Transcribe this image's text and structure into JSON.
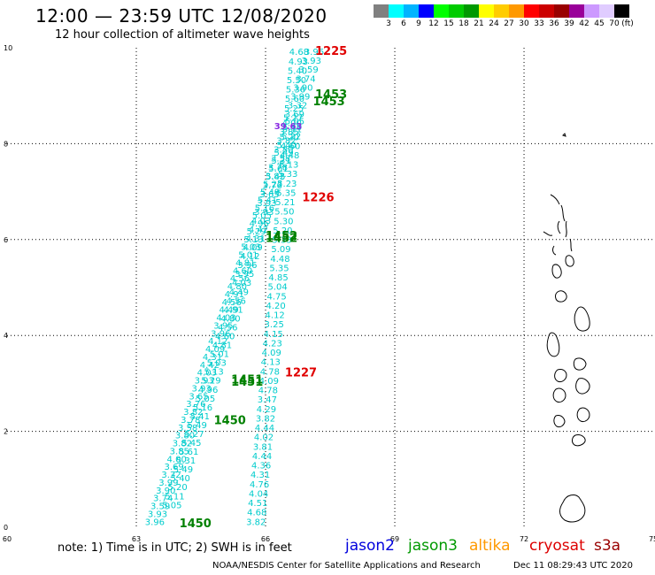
{
  "header": {
    "title": "12:00 — 23:59 UTC 12/08/2020",
    "subtitle": "12 hour collection of altimeter wave heights"
  },
  "colorbar": {
    "unit": "(ft)",
    "colors": [
      "#808080",
      "#00ffff",
      "#00b4ff",
      "#0000ff",
      "#00ff00",
      "#00cc00",
      "#009900",
      "#ffff00",
      "#ffcc00",
      "#ff9900",
      "#ff0000",
      "#cc0000",
      "#990000",
      "#990099",
      "#cc99ff",
      "#e0ccff",
      "#000000"
    ],
    "labels": [
      "3",
      "6",
      "9",
      "12",
      "15",
      "18",
      "21",
      "24",
      "27",
      "30",
      "33",
      "36",
      "39",
      "42",
      "45",
      "70"
    ]
  },
  "axes": {
    "x_ticks": [
      "60",
      "63",
      "66",
      "69",
      "72",
      "75"
    ],
    "y_ticks": [
      "0",
      "2",
      "4",
      "6",
      "8",
      "10"
    ]
  },
  "passes": {
    "a": [
      "3.96",
      "3.93",
      "3.59",
      "3.74",
      "3.90",
      "3.99",
      "3.32",
      "3.69",
      "4.00",
      "3.85",
      "3.82",
      "3.80",
      "3.58",
      "3.78",
      "3.82",
      "3.76",
      "3.65",
      "3.93",
      "3.93",
      "4.03",
      "4.42",
      "4.31",
      "4.09",
      "4.12",
      "3.96",
      "3.95",
      "4.03",
      "4.49",
      "4.56",
      "4.91",
      "4.80",
      "4.56",
      "4.60",
      "4.81",
      "5.01",
      "5.03",
      "5.13",
      "5.29",
      "4.96",
      "5.05",
      "5.16",
      "5.41",
      "5.49",
      "5.27",
      "5.45",
      "5.61",
      "5.31",
      "5.49",
      "5.40",
      "5.20",
      "5.11",
      "5.05"
    ],
    "b": [
      "3.82",
      "4.68",
      "4.51",
      "4.04",
      "4.76",
      "4.31",
      "4.36",
      "4.44",
      "3.81",
      "4.02",
      "4.44",
      "3.82",
      "4.29",
      "3.47",
      "4.78",
      "4.09",
      "4.78",
      "4.13",
      "4.09",
      "4.23",
      "4.15",
      "3.25",
      "4.12",
      "4.20",
      "4.75",
      "5.04",
      "4.85",
      "5.35",
      "4.48",
      "5.09",
      "5.33",
      "5.20",
      "5.30",
      "5.50",
      "5.21",
      "5.35",
      "5.23",
      "5.33",
      "5.13",
      "4.48",
      "4.60",
      "5.22",
      "5.40",
      "5.27",
      "5.25",
      "5.60",
      "5.36",
      "5.50",
      "5.40",
      "4.93",
      "4.68"
    ],
    "labels": [
      {
        "text": "1450",
        "color": "#008000",
        "lon": 64.0,
        "lat": 0.0
      },
      {
        "text": "1450",
        "color": "#008000",
        "lon": 64.8,
        "lat": 2.15
      },
      {
        "text": "1451",
        "color": "#008000",
        "lon": 65.2,
        "lat": 2.95
      },
      {
        "text": "1451",
        "color": "#008000",
        "lon": 65.2,
        "lat": 3.0
      },
      {
        "text": "1227",
        "color": "#e00000",
        "lon": 66.45,
        "lat": 3.15
      },
      {
        "text": "1452",
        "color": "#008000",
        "lon": 66.0,
        "lat": 5.95
      },
      {
        "text": "1452",
        "color": "#008000",
        "lon": 66.0,
        "lat": 6.0
      },
      {
        "text": "1226",
        "color": "#e00000",
        "lon": 66.85,
        "lat": 6.8
      },
      {
        "text": "39.63",
        "color": "#8a2be2",
        "lon": 66.2,
        "lat": 8.3
      },
      {
        "text": "1453",
        "color": "#008000",
        "lon": 67.1,
        "lat": 8.8
      },
      {
        "text": "1453",
        "color": "#008000",
        "lon": 67.15,
        "lat": 8.95
      },
      {
        "text": "1225",
        "color": "#e00000",
        "lon": 67.15,
        "lat": 9.85
      }
    ]
  },
  "notes": {
    "note": "note: 1) Time is in UTC; 2) SWH is in feet",
    "missions": [
      {
        "name": "jason2",
        "color": "#0000dd"
      },
      {
        "name": "jason3",
        "color": "#009900"
      },
      {
        "name": "altika",
        "color": "#ff9900"
      },
      {
        "name": "cryosat",
        "color": "#dd0000"
      },
      {
        "name": "s3a",
        "color": "#990000"
      }
    ],
    "credit": "NOAA/NESDIS Center for Satellite Applications and Research",
    "timestamp": "Dec 11 08:29:43 UTC 2020"
  }
}
